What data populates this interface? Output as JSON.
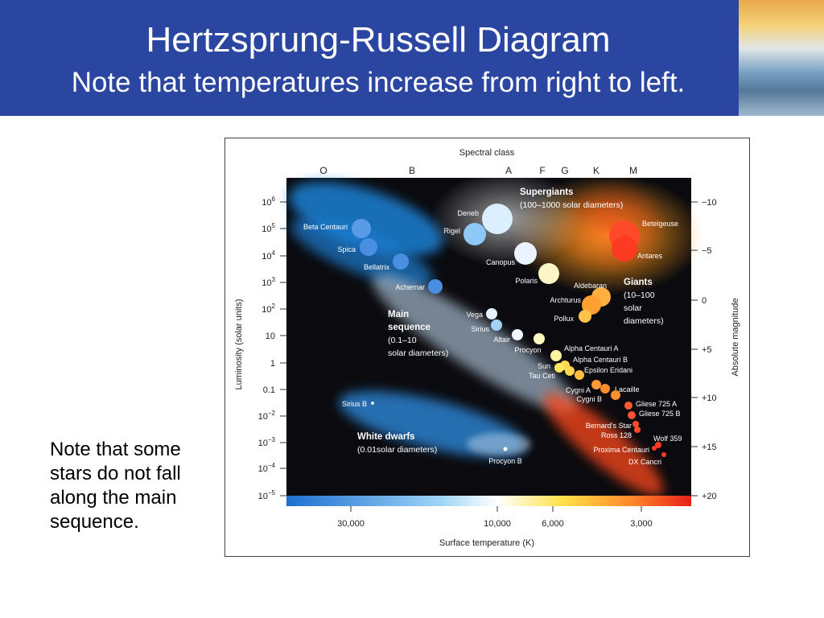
{
  "title": "Hertzsprung-Russell Diagram",
  "subtitle": "Note that temperatures increase from right to left.",
  "note": "Note that some stars do not fall along the main sequence.",
  "diagram": {
    "top_axis_title": "Spectral class",
    "spectral_classes": [
      "O",
      "B",
      "A",
      "F",
      "G",
      "K",
      "M"
    ],
    "left_axis_title": "Luminosity (solar units)",
    "right_axis_title": "Absolute magnitude",
    "bottom_axis_title": "Surface temperature (K)",
    "temperature_ticks": [
      "30,000",
      "10,000",
      "6,000",
      "3,000"
    ],
    "luminosity_ticks": [
      {
        "base": "10",
        "exp": "6"
      },
      {
        "base": "10",
        "exp": "5"
      },
      {
        "base": "10",
        "exp": "4"
      },
      {
        "base": "10",
        "exp": "3"
      },
      {
        "base": "10",
        "exp": "2"
      },
      {
        "base": "10",
        "exp": ""
      },
      {
        "base": "1",
        "exp": ""
      },
      {
        "base": "0.1",
        "exp": ""
      },
      {
        "base": "10",
        "exp": "−2"
      },
      {
        "base": "10",
        "exp": "−3"
      },
      {
        "base": "10",
        "exp": "−4"
      },
      {
        "base": "10",
        "exp": "−5"
      }
    ],
    "magnitude_ticks": [
      "−10",
      "−5",
      "0",
      "+5",
      "+10",
      "+15",
      "+20"
    ],
    "regions": {
      "supergiants": {
        "title": "Supergiants",
        "desc": "(100–1000 solar diameters)"
      },
      "giants": {
        "title": "Giants",
        "desc1": "(10–100",
        "desc2": "solar",
        "desc3": "diameters)"
      },
      "main_sequence": {
        "title1": "Main",
        "title2": "sequence",
        "desc1": "(0.1–10",
        "desc2": "solar diameters)"
      },
      "white_dwarfs": {
        "title": "White dwarfs",
        "desc": "(0.01solar diameters)"
      }
    },
    "stars": [
      {
        "name": "Beta Centauri",
        "color": "#5a9be6"
      },
      {
        "name": "Spica",
        "color": "#4a8ee2"
      },
      {
        "name": "Bellatrix",
        "color": "#4a8ee2"
      },
      {
        "name": "Achernar",
        "color": "#4a8ee2"
      },
      {
        "name": "Deneb",
        "color": "#dcefff"
      },
      {
        "name": "Rigel",
        "color": "#8ec8f5"
      },
      {
        "name": "Canopus",
        "color": "#eaf4ff"
      },
      {
        "name": "Polaris",
        "color": "#fff6c8"
      },
      {
        "name": "Betelgeuse",
        "color": "#ff4a2a"
      },
      {
        "name": "Antares",
        "color": "#ff3a22"
      },
      {
        "name": "Aldebaran",
        "color": "#ffb040"
      },
      {
        "name": "Archturus",
        "color": "#ffa030"
      },
      {
        "name": "Pollux",
        "color": "#ffc24a"
      },
      {
        "name": "Vega",
        "color": "#e6f3ff"
      },
      {
        "name": "Sirius",
        "color": "#a4d2f6"
      },
      {
        "name": "Altair",
        "color": "#f2f8ff"
      },
      {
        "name": "Procyon",
        "color": "#fff8c0"
      },
      {
        "name": "Alpha Centauri A",
        "color": "#fff4a0"
      },
      {
        "name": "Alpha Centauri B",
        "color": "#ffd850"
      },
      {
        "name": "Sun",
        "color": "#ffe860"
      },
      {
        "name": "Tau Ceti",
        "color": "#ffd850"
      },
      {
        "name": "Epsilon Eridani",
        "color": "#ffc040"
      },
      {
        "name": "Lacaille",
        "color": "#ff8a30"
      },
      {
        "name": "Cygni A",
        "color": "#ff9a3a"
      },
      {
        "name": "Cygni B",
        "color": "#ff9030"
      },
      {
        "name": "Gliese 725 A",
        "color": "#ff5a30"
      },
      {
        "name": "Gliese 725 B",
        "color": "#ff5030"
      },
      {
        "name": "Bernard's Star",
        "color": "#ff4a2a"
      },
      {
        "name": "Ross 128",
        "color": "#ff4a2a"
      },
      {
        "name": "Wolf 359",
        "color": "#ff3a22"
      },
      {
        "name": "Proxima Centauri",
        "color": "#ff3a22"
      },
      {
        "name": "DX Cancri",
        "color": "#ff3a22"
      },
      {
        "name": "Sirius B",
        "color": "#d8ecff"
      },
      {
        "name": "Procyon B",
        "color": "#ffffff"
      }
    ]
  }
}
